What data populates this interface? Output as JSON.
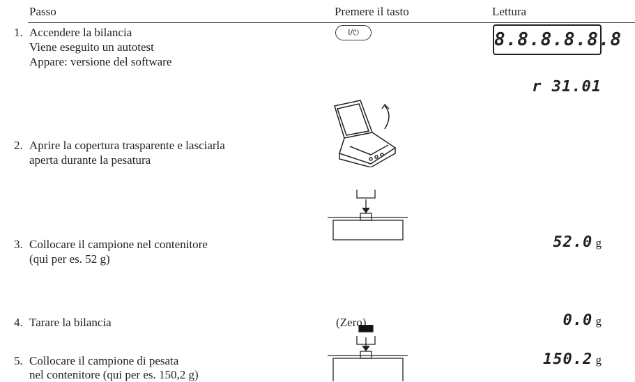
{
  "header": {
    "columns": [
      "Passo",
      "Premere il tasto",
      "Lettura"
    ]
  },
  "steps": [
    {
      "number": "1.",
      "lines": [
        "Accendere la bilancia",
        "Viene eseguito un autotest",
        "Appare: versione del software"
      ],
      "key": "I/⏻",
      "readings": [
        "8.8.8.8.8.8",
        "r 31.01"
      ]
    },
    {
      "number": "2.",
      "lines": [
        "Aprire la copertura trasparente e lasciarla",
        "aperta durante la pesatura"
      ]
    },
    {
      "number": "3.",
      "lines": [
        "Collocare il campione nel contenitore",
        "(qui per es. 52 g)"
      ],
      "reading": "52.0",
      "unit": "g"
    },
    {
      "number": "4.",
      "lines": [
        "Tarare la bilancia"
      ],
      "key": "(Zero)",
      "reading": "0.0",
      "unit": "g"
    },
    {
      "number": "5.",
      "lines": [
        "Collocare il campione di pesata",
        "nel contenitore (qui per es. 150,2 g)"
      ],
      "reading": "150.2",
      "unit": "g"
    }
  ]
}
